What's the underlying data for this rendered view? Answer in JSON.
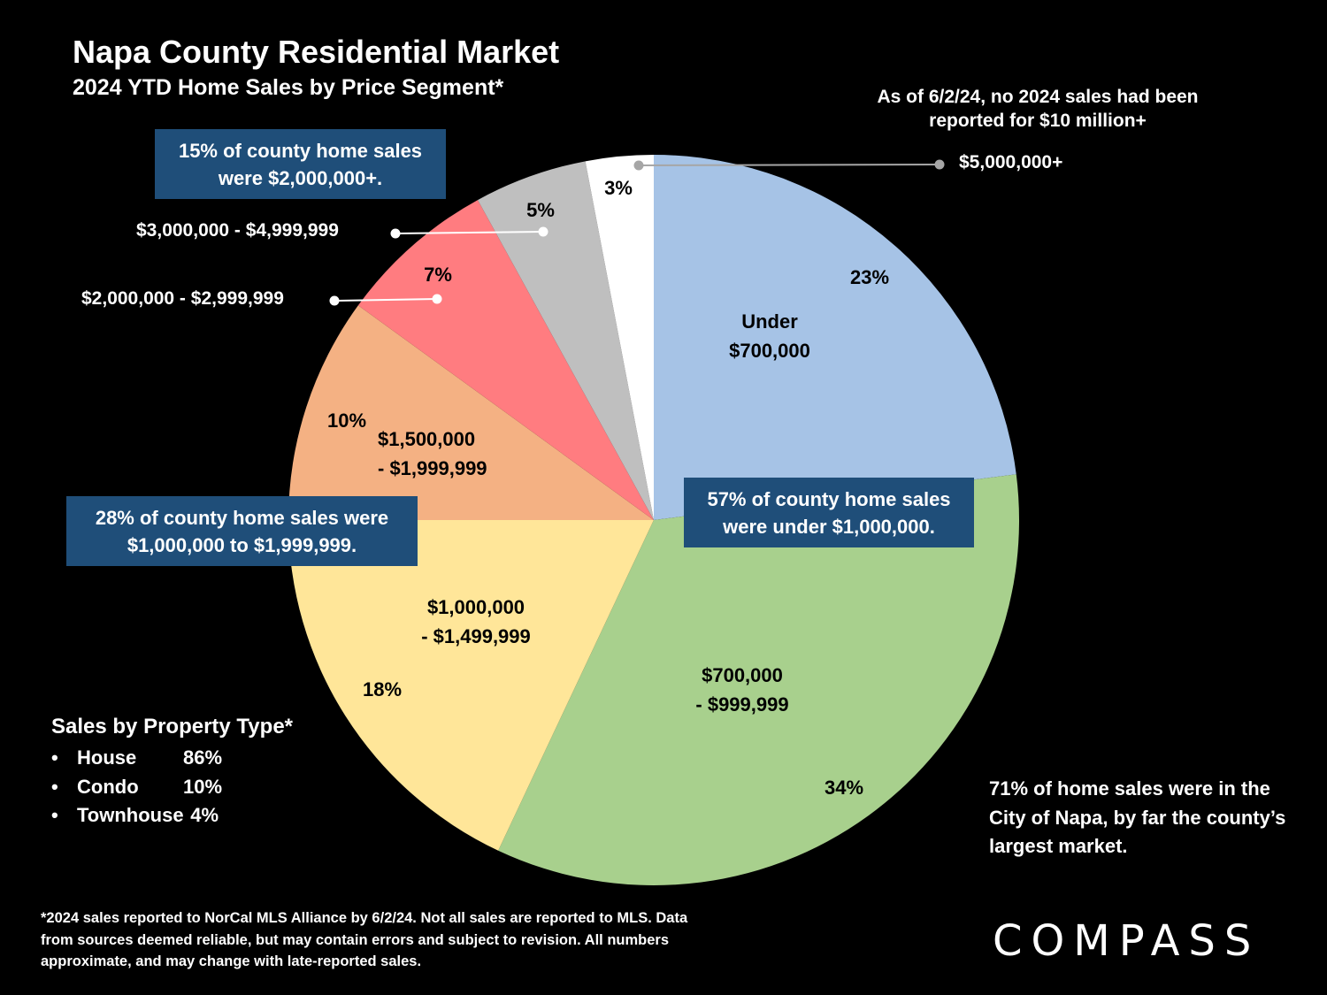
{
  "title": "Napa County Residential Market",
  "subtitle": "2024 YTD Home Sales by Price Segment*",
  "chart_data": {
    "type": "pie",
    "title": "Napa County Residential Market",
    "subtitle": "2024 YTD Home Sales by Price Segment*",
    "slices": [
      {
        "label": "Under $700,000",
        "label_lines": [
          "Under",
          "$700,000"
        ],
        "value": 23,
        "pct_label": "23%",
        "color": "#a6c3e6"
      },
      {
        "label": "$700,000 - $999,999",
        "label_lines": [
          "$700,000",
          "- $999,999"
        ],
        "value": 34,
        "pct_label": "34%",
        "color": "#a8d08d"
      },
      {
        "label": "$1,000,000 - $1,499,999",
        "label_lines": [
          "$1,000,000",
          "- $1,499,999"
        ],
        "value": 18,
        "pct_label": "18%",
        "color": "#ffe699"
      },
      {
        "label": "$1,500,000 - $1,999,999",
        "label_lines": [
          "$1,500,000",
          "- $1,999,999"
        ],
        "value": 10,
        "pct_label": "10%",
        "color": "#f4b183"
      },
      {
        "label": "$2,000,000 - $2,999,999",
        "value": 7,
        "pct_label": "7%",
        "color": "#ff7c80"
      },
      {
        "label": "$3,000,000 - $4,999,999",
        "value": 5,
        "pct_label": "5%",
        "color": "#bfbfbf"
      },
      {
        "label": "$5,000,000+",
        "value": 3,
        "pct_label": "3%",
        "color": "#ffffff"
      }
    ]
  },
  "callouts": {
    "over_2m": "15% of county home sales were $2,000,000+.",
    "range_1m_2m": "28% of county home sales were $1,000,000 to $1,999,999.",
    "under_1m": "57% of county home sales were under $1,000,000.",
    "no_10m": "As of 6/2/24, no 2024 sales had been reported for $10 million+"
  },
  "property_type": {
    "title": "Sales by Property Type*",
    "items": [
      {
        "bullet": "•",
        "type": "House",
        "pct": "86%"
      },
      {
        "bullet": "•",
        "type": "Condo",
        "pct": "10%"
      },
      {
        "bullet": "•",
        "type": "Townhouse",
        "pct": "4%"
      }
    ]
  },
  "city_note": "71% of home sales were in the City of Napa, by far the county’s largest market.",
  "footnote": "*2024 sales reported to NorCal MLS Alliance by 6/2/24. Not all sales are reported to MLS. Data from sources deemed reliable, but may contain errors and subject to revision. All numbers approximate, and may change with late-reported sales.",
  "logo": "COMPASS",
  "colors": {
    "background": "#000000",
    "callout_box": "#1f4e79",
    "leader": "#ffffff",
    "leader_top": "#a6a6a6"
  }
}
